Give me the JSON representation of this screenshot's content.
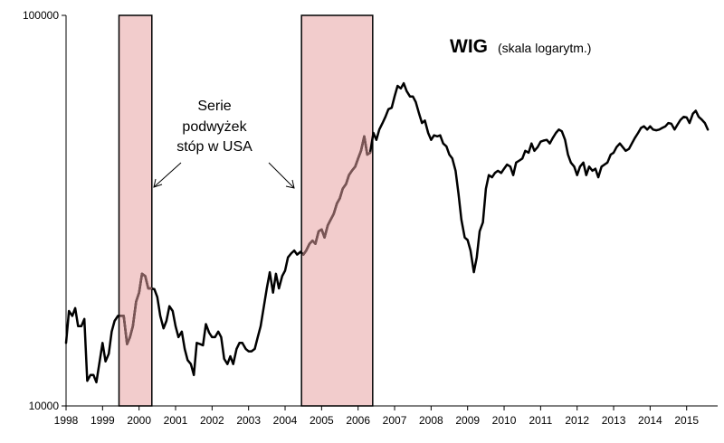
{
  "chart_data": {
    "type": "line",
    "title": "WIG",
    "subtitle": "(skala logarytm.)",
    "xlabel": "",
    "ylabel": "",
    "yscale": "log",
    "ylim": [
      10000,
      100000
    ],
    "xlim": [
      1998.0,
      2015.85
    ],
    "y_ticks": [
      "10000",
      "100000"
    ],
    "x_ticks": [
      "1998",
      "1999",
      "2000",
      "2001",
      "2002",
      "2003",
      "2004",
      "2005",
      "2006",
      "2007",
      "2008",
      "2009",
      "2010",
      "2011",
      "2012",
      "2013",
      "2014",
      "2015"
    ],
    "grid": false,
    "legend": "none",
    "colors": {
      "line": "#000000",
      "band_fill": "#f2cccc",
      "band_stroke": "#000000",
      "line_in_band": "#7a5555"
    },
    "shaded_periods": [
      {
        "start": 1999.45,
        "end": 2000.35
      },
      {
        "start": 2004.45,
        "end": 2006.4
      }
    ],
    "annotation": {
      "lines": [
        "Serie",
        "podwyżek",
        "stóp w USA"
      ]
    },
    "series": [
      {
        "x": [
          1998.0,
          1998.08,
          1998.17,
          1998.25,
          1998.33,
          1998.42,
          1998.5,
          1998.58,
          1998.67,
          1998.75,
          1998.83,
          1998.92,
          1999.0,
          1999.08,
          1999.17,
          1999.25,
          1999.33,
          1999.42,
          1999.5,
          1999.58,
          1999.67,
          1999.75,
          1999.83,
          1999.92,
          2000.0,
          2000.08,
          2000.17,
          2000.25,
          2000.33,
          2000.42,
          2000.5,
          2000.58,
          2000.67,
          2000.75,
          2000.83,
          2000.92,
          2001.0,
          2001.08,
          2001.17,
          2001.25,
          2001.33,
          2001.42,
          2001.5,
          2001.58,
          2001.67,
          2001.75,
          2001.83,
          2001.92,
          2002.0,
          2002.08,
          2002.17,
          2002.25,
          2002.33,
          2002.42,
          2002.5,
          2002.58,
          2002.67,
          2002.75,
          2002.83,
          2002.92,
          2003.0,
          2003.08,
          2003.17,
          2003.25,
          2003.33,
          2003.42,
          2003.5,
          2003.58,
          2003.67,
          2003.75,
          2003.83,
          2003.92,
          2004.0,
          2004.08,
          2004.17,
          2004.25,
          2004.33,
          2004.42,
          2004.5,
          2004.58,
          2004.67,
          2004.75,
          2004.83,
          2004.92,
          2005.0,
          2005.08,
          2005.17,
          2005.25,
          2005.33,
          2005.42,
          2005.5,
          2005.58,
          2005.67,
          2005.75,
          2005.83,
          2005.92,
          2006.0,
          2006.08,
          2006.17,
          2006.25,
          2006.33,
          2006.42,
          2006.5,
          2006.58,
          2006.67,
          2006.75,
          2006.83,
          2006.92,
          2007.0,
          2007.08,
          2007.17,
          2007.25,
          2007.33,
          2007.42,
          2007.5,
          2007.58,
          2007.67,
          2007.75,
          2007.83,
          2007.92,
          2008.0,
          2008.08,
          2008.17,
          2008.25,
          2008.33,
          2008.42,
          2008.5,
          2008.58,
          2008.67,
          2008.75,
          2008.83,
          2008.92,
          2009.0,
          2009.08,
          2009.17,
          2009.25,
          2009.33,
          2009.42,
          2009.5,
          2009.58,
          2009.67,
          2009.75,
          2009.83,
          2009.92,
          2010.0,
          2010.08,
          2010.17,
          2010.25,
          2010.33,
          2010.42,
          2010.5,
          2010.58,
          2010.67,
          2010.75,
          2010.83,
          2010.92,
          2011.0,
          2011.08,
          2011.17,
          2011.25,
          2011.33,
          2011.42,
          2011.5,
          2011.58,
          2011.67,
          2011.75,
          2011.83,
          2011.92,
          2012.0,
          2012.08,
          2012.17,
          2012.25,
          2012.33,
          2012.42,
          2012.5,
          2012.58,
          2012.67,
          2012.75,
          2012.83,
          2012.92,
          2013.0,
          2013.08,
          2013.17,
          2013.25,
          2013.33,
          2013.42,
          2013.5,
          2013.58,
          2013.67,
          2013.75,
          2013.83,
          2013.92,
          2014.0,
          2014.08,
          2014.17,
          2014.25,
          2014.33,
          2014.42,
          2014.5,
          2014.58,
          2014.67,
          2014.75,
          2014.83,
          2014.92,
          2015.0,
          2015.08,
          2015.17,
          2015.25,
          2015.33,
          2015.42,
          2015.5,
          2015.58
        ],
        "values": [
          14500,
          17500,
          17000,
          17800,
          16000,
          16000,
          16700,
          11600,
          12000,
          12000,
          11500,
          13000,
          14500,
          13000,
          13600,
          15500,
          16500,
          17000,
          17000,
          17000,
          14400,
          15000,
          16000,
          18500,
          19500,
          21800,
          21500,
          20000,
          20000,
          19900,
          19000,
          17000,
          15800,
          16500,
          18000,
          17500,
          16000,
          15000,
          15500,
          14000,
          13100,
          12800,
          12000,
          14500,
          14400,
          14300,
          16200,
          15400,
          15000,
          15000,
          15500,
          15000,
          13200,
          12800,
          13400,
          12800,
          14000,
          14500,
          14500,
          14000,
          13800,
          13800,
          14000,
          15000,
          16000,
          18000,
          20000,
          22000,
          19500,
          21800,
          20000,
          21500,
          22200,
          24000,
          24600,
          25000,
          24400,
          24800,
          24400,
          25000,
          26000,
          26500,
          26000,
          28000,
          28300,
          27000,
          29000,
          30000,
          31000,
          33000,
          34000,
          36000,
          37000,
          39000,
          40000,
          41000,
          43000,
          45000,
          49000,
          44000,
          44500,
          50000,
          48000,
          51000,
          53000,
          55000,
          57500,
          58000,
          62000,
          66000,
          65000,
          67000,
          64000,
          62000,
          62000,
          60000,
          56000,
          53000,
          53800,
          50000,
          48000,
          49300,
          49000,
          49300,
          47000,
          46200,
          44000,
          43000,
          40000,
          35000,
          30000,
          27000,
          26600,
          25000,
          22000,
          24000,
          28000,
          29500,
          36000,
          39000,
          38500,
          39500,
          40000,
          39500,
          40500,
          41500,
          41000,
          39000,
          42000,
          42500,
          43000,
          45000,
          44500,
          47000,
          45000,
          46000,
          47500,
          47800,
          48000,
          47000,
          48500,
          50000,
          51000,
          50500,
          48000,
          44000,
          42000,
          41000,
          39000,
          41000,
          42000,
          39000,
          41000,
          40000,
          40500,
          38500,
          41000,
          41500,
          42000,
          44000,
          44500,
          46000,
          47000,
          46000,
          45000,
          45500,
          47000,
          48500,
          50000,
          51500,
          52000,
          51000,
          52000,
          51000,
          50800,
          51000,
          51500,
          52000,
          53000,
          52800,
          51000,
          52500,
          54000,
          55000,
          54800,
          53000,
          56000,
          57000,
          55000,
          54000,
          53000,
          51000
        ]
      }
    ]
  }
}
